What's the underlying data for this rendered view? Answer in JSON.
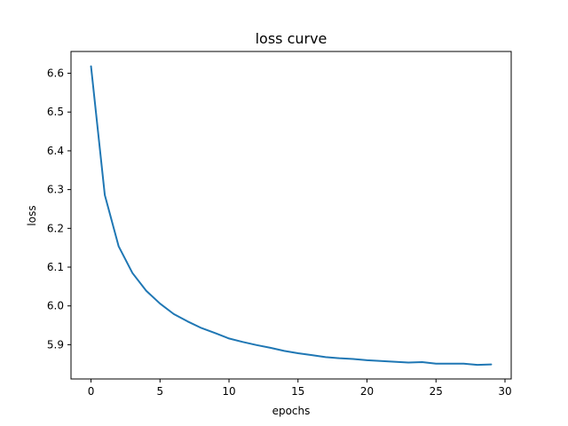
{
  "chart_data": {
    "type": "line",
    "title": "loss curve",
    "xlabel": "epochs",
    "ylabel": "loss",
    "xlim": [
      -1.45,
      30.45
    ],
    "ylim": [
      5.8116,
      6.6562
    ],
    "xticks": [
      0,
      5,
      10,
      15,
      20,
      25,
      30
    ],
    "yticks": [
      5.9,
      6.0,
      6.1,
      6.2,
      6.3,
      6.4,
      6.5,
      6.6
    ],
    "xtick_labels": [
      "0",
      "5",
      "10",
      "15",
      "20",
      "25",
      "30"
    ],
    "ytick_labels": [
      "5.9",
      "6.0",
      "6.1",
      "6.2",
      "6.3",
      "6.4",
      "6.5",
      "6.6"
    ],
    "grid": false,
    "legend": "none",
    "line_color": "#1f77b4",
    "series": [
      {
        "x": [
          0,
          1,
          2,
          3,
          4,
          5,
          6,
          7,
          8,
          9,
          10,
          11,
          12,
          13,
          14,
          15,
          16,
          17,
          18,
          19,
          20,
          21,
          22,
          23,
          24,
          25,
          26,
          27,
          28,
          29
        ],
        "values": [
          6.618,
          6.286,
          6.154,
          6.085,
          6.039,
          6.006,
          5.979,
          5.96,
          5.943,
          5.93,
          5.916,
          5.907,
          5.899,
          5.892,
          5.884,
          5.878,
          5.873,
          5.868,
          5.865,
          5.863,
          5.86,
          5.858,
          5.856,
          5.854,
          5.855,
          5.851,
          5.851,
          5.851,
          5.848,
          5.849
        ]
      }
    ]
  }
}
